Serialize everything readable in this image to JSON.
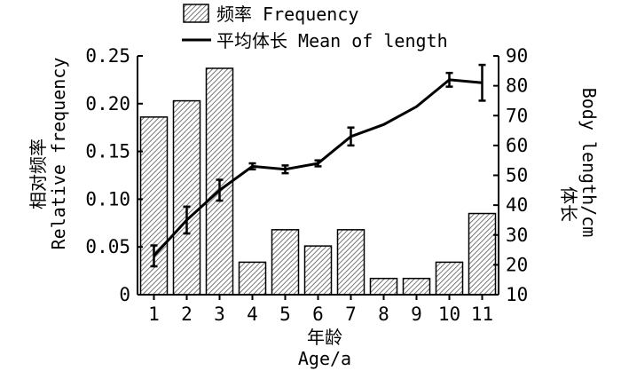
{
  "chart_data": {
    "type": "bar",
    "categories": [
      "1",
      "2",
      "3",
      "4",
      "5",
      "6",
      "7",
      "8",
      "9",
      "10",
      "11"
    ],
    "series": [
      {
        "name": "频率 Frequency",
        "kind": "bar",
        "axis": "left",
        "values": [
          0.186,
          0.203,
          0.237,
          0.034,
          0.068,
          0.051,
          0.068,
          0.017,
          0.017,
          0.034,
          0.085
        ]
      },
      {
        "name": "平均体长 Mean of length",
        "kind": "line",
        "axis": "right",
        "values": [
          23,
          35,
          45,
          53,
          52,
          54,
          63,
          67,
          73,
          82,
          81
        ],
        "error": [
          3.5,
          4.5,
          3.5,
          1,
          1.3,
          1,
          3,
          0,
          0,
          2.3,
          6
        ]
      }
    ],
    "xlabel_cn": "年龄",
    "xlabel_en": "Age/a",
    "ylabel_left_cn": "相对频率",
    "ylabel_left_en": "Relative frequency",
    "ylabel_right_cn": "体长",
    "ylabel_right_en": "Body length/cm",
    "ylim_left": [
      0,
      0.25
    ],
    "yticks_left": [
      "0",
      "0.05",
      "0.10",
      "0.15",
      "0.20",
      "0.25"
    ],
    "ylim_right": [
      10,
      90
    ],
    "yticks_right": [
      "10",
      "20",
      "30",
      "40",
      "50",
      "60",
      "70",
      "80",
      "90"
    ],
    "legend_position": "top",
    "grid": false
  }
}
